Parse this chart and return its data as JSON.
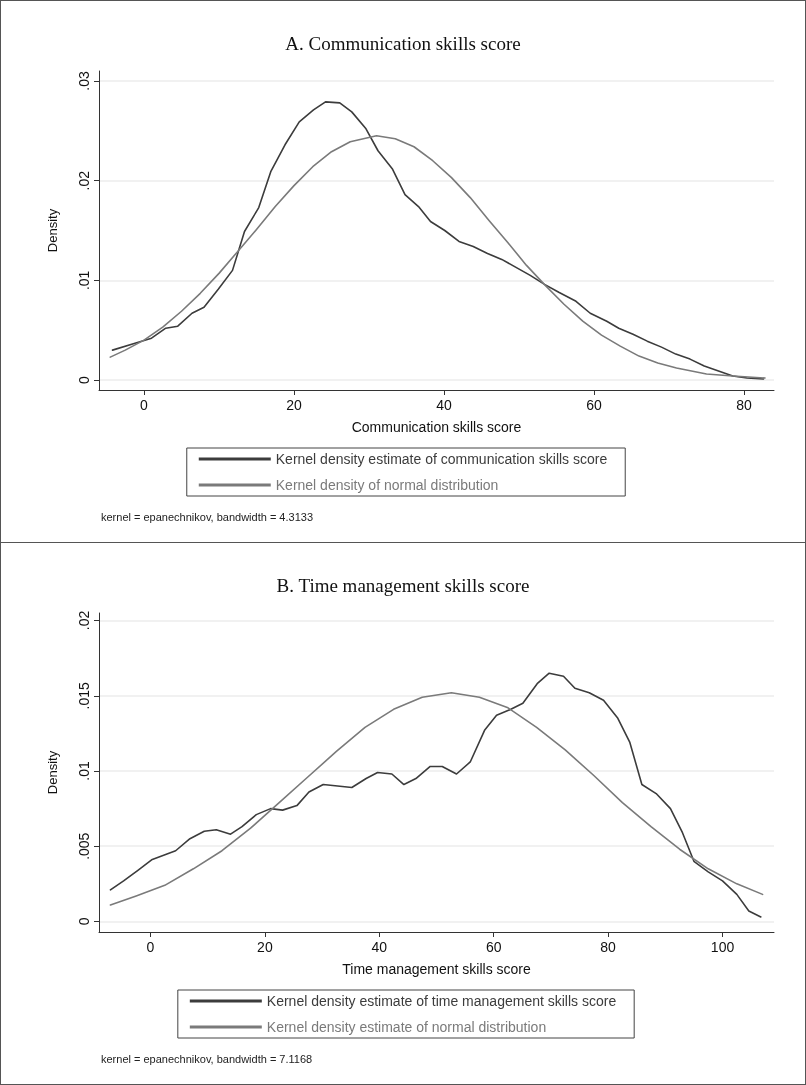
{
  "chart_data": [
    {
      "type": "line",
      "title": "A. Communication skills score",
      "xlabel": "Communication skills score",
      "ylabel": "Density",
      "xlim": [
        -6,
        84
      ],
      "xticks": [
        0,
        20,
        40,
        60,
        80
      ],
      "ylim": [
        -0.001,
        0.031
      ],
      "yticks": [
        {
          "value": 0,
          "label": "0"
        },
        {
          "value": 0.01,
          "label": ".01"
        },
        {
          "value": 0.02,
          "label": ".02"
        },
        {
          "value": 0.03,
          "label": ".03"
        }
      ],
      "grid": "y",
      "legend": "bottom",
      "marker": "none",
      "line_style": "solid",
      "annotations": [
        "kernel = epanechnikov, bandwidth = 4.3133"
      ],
      "series": [
        {
          "name": "Kernel density estimate of communication skills score",
          "color": "#3c3c3c",
          "x": [
            -4.2,
            -1.2,
            1,
            2.9,
            4.5,
            6.4,
            8,
            9.9,
            11.8,
            13.4,
            15.3,
            16.9,
            18.8,
            20.7,
            22.6,
            24.2,
            26.1,
            27.7,
            29.6,
            31.2,
            33.1,
            34.8,
            36.6,
            38.2,
            40.1,
            42,
            43.9,
            45.8,
            47.7,
            49.6,
            51.5,
            53.4,
            55.3,
            57.6,
            59.5,
            61.7,
            63.3,
            65.2,
            67.1,
            69,
            70.9,
            72.8,
            74.7,
            76.6,
            78.5,
            80.4,
            82.6
          ],
          "values": [
            0.003,
            0.0037,
            0.0042,
            0.0052,
            0.0054,
            0.0067,
            0.0073,
            0.0091,
            0.011,
            0.0149,
            0.0173,
            0.0209,
            0.0236,
            0.0259,
            0.0271,
            0.0279,
            0.0278,
            0.0269,
            0.0252,
            0.023,
            0.0212,
            0.0186,
            0.0174,
            0.0159,
            0.015,
            0.0139,
            0.0134,
            0.0127,
            0.0121,
            0.0113,
            0.0105,
            0.0096,
            0.0088,
            0.0079,
            0.0067,
            0.0059,
            0.0052,
            0.0046,
            0.0039,
            0.0033,
            0.0026,
            0.0021,
            0.0014,
            0.0009,
            0.0004,
            0.0002,
            0.0001
          ]
        },
        {
          "name": "Kernel density of normal distribution",
          "color": "#7a7a7a",
          "x": [
            -4.5,
            -2.5,
            0,
            2.5,
            5,
            7.5,
            10,
            12.5,
            15,
            17.5,
            20,
            22.5,
            25,
            27.5,
            31,
            33.5,
            36,
            38.5,
            41,
            43.5,
            46,
            48.5,
            51,
            53.5,
            56,
            58.5,
            61,
            63.5,
            66,
            68.5,
            71,
            75,
            78.5,
            82.8
          ],
          "values": [
            0.0023,
            0.003,
            0.004,
            0.0053,
            0.0069,
            0.0087,
            0.0107,
            0.0129,
            0.0151,
            0.0174,
            0.0195,
            0.0214,
            0.0229,
            0.0239,
            0.0245,
            0.0242,
            0.0234,
            0.022,
            0.0203,
            0.0183,
            0.016,
            0.0138,
            0.0115,
            0.0095,
            0.0076,
            0.0059,
            0.0045,
            0.0034,
            0.0024,
            0.0017,
            0.0012,
            0.0006,
            0.0004,
            0.0002
          ]
        }
      ]
    },
    {
      "type": "line",
      "title": "B. Time management skills score",
      "xlabel": "Time management skills score",
      "ylabel": "Density",
      "xlim": [
        -9,
        109
      ],
      "xticks": [
        0,
        20,
        40,
        60,
        80,
        100
      ],
      "ylim": [
        -0.0007,
        0.0205
      ],
      "yticks": [
        {
          "value": 0,
          "label": "0"
        },
        {
          "value": 0.005,
          "label": ".005"
        },
        {
          "value": 0.01,
          "label": ".01"
        },
        {
          "value": 0.015,
          "label": ".015"
        },
        {
          "value": 0.02,
          "label": ".02"
        }
      ],
      "grid": "y",
      "legend": "bottom",
      "marker": "none",
      "line_style": "solid",
      "annotations": [
        "kernel = epanechnikov, bandwidth = 7.1168"
      ],
      "series": [
        {
          "name": "Kernel density estimate of time management skills score",
          "color": "#3c3c3c",
          "x": [
            -7,
            -4.7,
            -2.2,
            0.2,
            2.3,
            4.4,
            6.9,
            9.4,
            11.5,
            14,
            16,
            18.5,
            21,
            23.1,
            25.6,
            27.7,
            30.2,
            32.7,
            35.2,
            37.7,
            39.7,
            42.2,
            44.3,
            46.4,
            48.9,
            51,
            53.5,
            55.9,
            58.4,
            60.5,
            63,
            65.1,
            67.6,
            69.7,
            72.2,
            74.2,
            76.7,
            79.2,
            81.7,
            83.8,
            85.9,
            88.4,
            90.9,
            93,
            95,
            97.5,
            100,
            102.5,
            104.6,
            106.7
          ],
          "values": [
            0.0021,
            0.0027,
            0.0034,
            0.0041,
            0.0044,
            0.0047,
            0.0055,
            0.006,
            0.0061,
            0.0058,
            0.0063,
            0.0071,
            0.0075,
            0.0074,
            0.0077,
            0.0086,
            0.0091,
            0.009,
            0.0089,
            0.0095,
            0.0099,
            0.0098,
            0.0091,
            0.0095,
            0.0103,
            0.0103,
            0.0098,
            0.0106,
            0.0127,
            0.0137,
            0.0141,
            0.0145,
            0.0158,
            0.0165,
            0.0163,
            0.0155,
            0.0152,
            0.0147,
            0.0135,
            0.0119,
            0.0091,
            0.0085,
            0.0075,
            0.0059,
            0.004,
            0.0033,
            0.0027,
            0.0018,
            0.0007,
            0.0003
          ]
        },
        {
          "name": "Kernel density estimate of normal distribution",
          "color": "#7a7a7a",
          "x": [
            -7,
            -2.5,
            2.5,
            7.5,
            12.5,
            17.5,
            22.5,
            27.5,
            32.5,
            37.5,
            42.5,
            47.5,
            52.6,
            57.5,
            62.5,
            67.5,
            72.5,
            77.5,
            82.5,
            87.5,
            92.5,
            97.5,
            102.5,
            107
          ],
          "values": [
            0.0011,
            0.0017,
            0.0024,
            0.0035,
            0.0047,
            0.0062,
            0.0079,
            0.0096,
            0.0113,
            0.0129,
            0.0141,
            0.0149,
            0.0152,
            0.0149,
            0.0142,
            0.0129,
            0.0114,
            0.0097,
            0.0079,
            0.0063,
            0.0048,
            0.0035,
            0.0025,
            0.0018
          ]
        }
      ]
    }
  ]
}
